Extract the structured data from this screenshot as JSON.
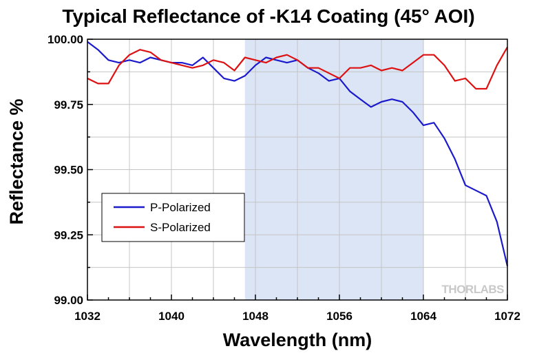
{
  "chart_data": {
    "type": "line",
    "title": "Typical Reflectance of -K14 Coating (45° AOI)",
    "xlabel": "Wavelength (nm)",
    "ylabel": "Reflectance %",
    "xlim": [
      1032,
      1072
    ],
    "ylim": [
      99.0,
      100.0
    ],
    "xticks": [
      1032,
      1040,
      1048,
      1056,
      1064,
      1072
    ],
    "xtick_labels": [
      "1032",
      "1040",
      "1048",
      "1056",
      "1064",
      "1072"
    ],
    "yticks": [
      99.0,
      99.25,
      99.5,
      99.75,
      100.0
    ],
    "ytick_labels": [
      "99.00",
      "99.25",
      "99.50",
      "99.75",
      "100.00"
    ],
    "grid": true,
    "highlight_band": {
      "x0": 1047,
      "x1": 1064,
      "color": "#dce5f5"
    },
    "legend_position": "left",
    "watermark": "THORLABS",
    "series": [
      {
        "name": "P-Polarized",
        "color": "#1a1acc",
        "x": [
          1032,
          1033,
          1034,
          1035,
          1036,
          1037,
          1038,
          1039,
          1040,
          1041,
          1042,
          1043,
          1044,
          1045,
          1046,
          1047,
          1048,
          1049,
          1050,
          1051,
          1052,
          1053,
          1054,
          1055,
          1056,
          1057,
          1058,
          1059,
          1060,
          1061,
          1062,
          1063,
          1064,
          1065,
          1066,
          1067,
          1068,
          1069,
          1070,
          1071,
          1072
        ],
        "values": [
          99.99,
          99.96,
          99.92,
          99.91,
          99.92,
          99.91,
          99.93,
          99.92,
          99.91,
          99.91,
          99.9,
          99.93,
          99.89,
          99.85,
          99.84,
          99.86,
          99.9,
          99.93,
          99.92,
          99.91,
          99.92,
          99.89,
          99.87,
          99.84,
          99.85,
          99.8,
          99.77,
          99.74,
          99.76,
          99.77,
          99.76,
          99.72,
          99.67,
          99.68,
          99.62,
          99.54,
          99.44,
          99.42,
          99.4,
          99.3,
          99.13
        ]
      },
      {
        "name": "S-Polarized",
        "color": "#dd1111",
        "x": [
          1032,
          1033,
          1034,
          1035,
          1036,
          1037,
          1038,
          1039,
          1040,
          1041,
          1042,
          1043,
          1044,
          1045,
          1046,
          1047,
          1048,
          1049,
          1050,
          1051,
          1052,
          1053,
          1054,
          1055,
          1056,
          1057,
          1058,
          1059,
          1060,
          1061,
          1062,
          1063,
          1064,
          1065,
          1066,
          1067,
          1068,
          1069,
          1070,
          1071,
          1072
        ],
        "values": [
          99.85,
          99.83,
          99.83,
          99.9,
          99.94,
          99.96,
          99.95,
          99.92,
          99.91,
          99.9,
          99.89,
          99.9,
          99.92,
          99.91,
          99.88,
          99.93,
          99.92,
          99.91,
          99.93,
          99.94,
          99.92,
          99.89,
          99.89,
          99.87,
          99.85,
          99.89,
          99.89,
          99.9,
          99.88,
          99.89,
          99.88,
          99.91,
          99.94,
          99.94,
          99.9,
          99.84,
          99.85,
          99.81,
          99.81,
          99.9,
          99.97
        ]
      }
    ]
  }
}
